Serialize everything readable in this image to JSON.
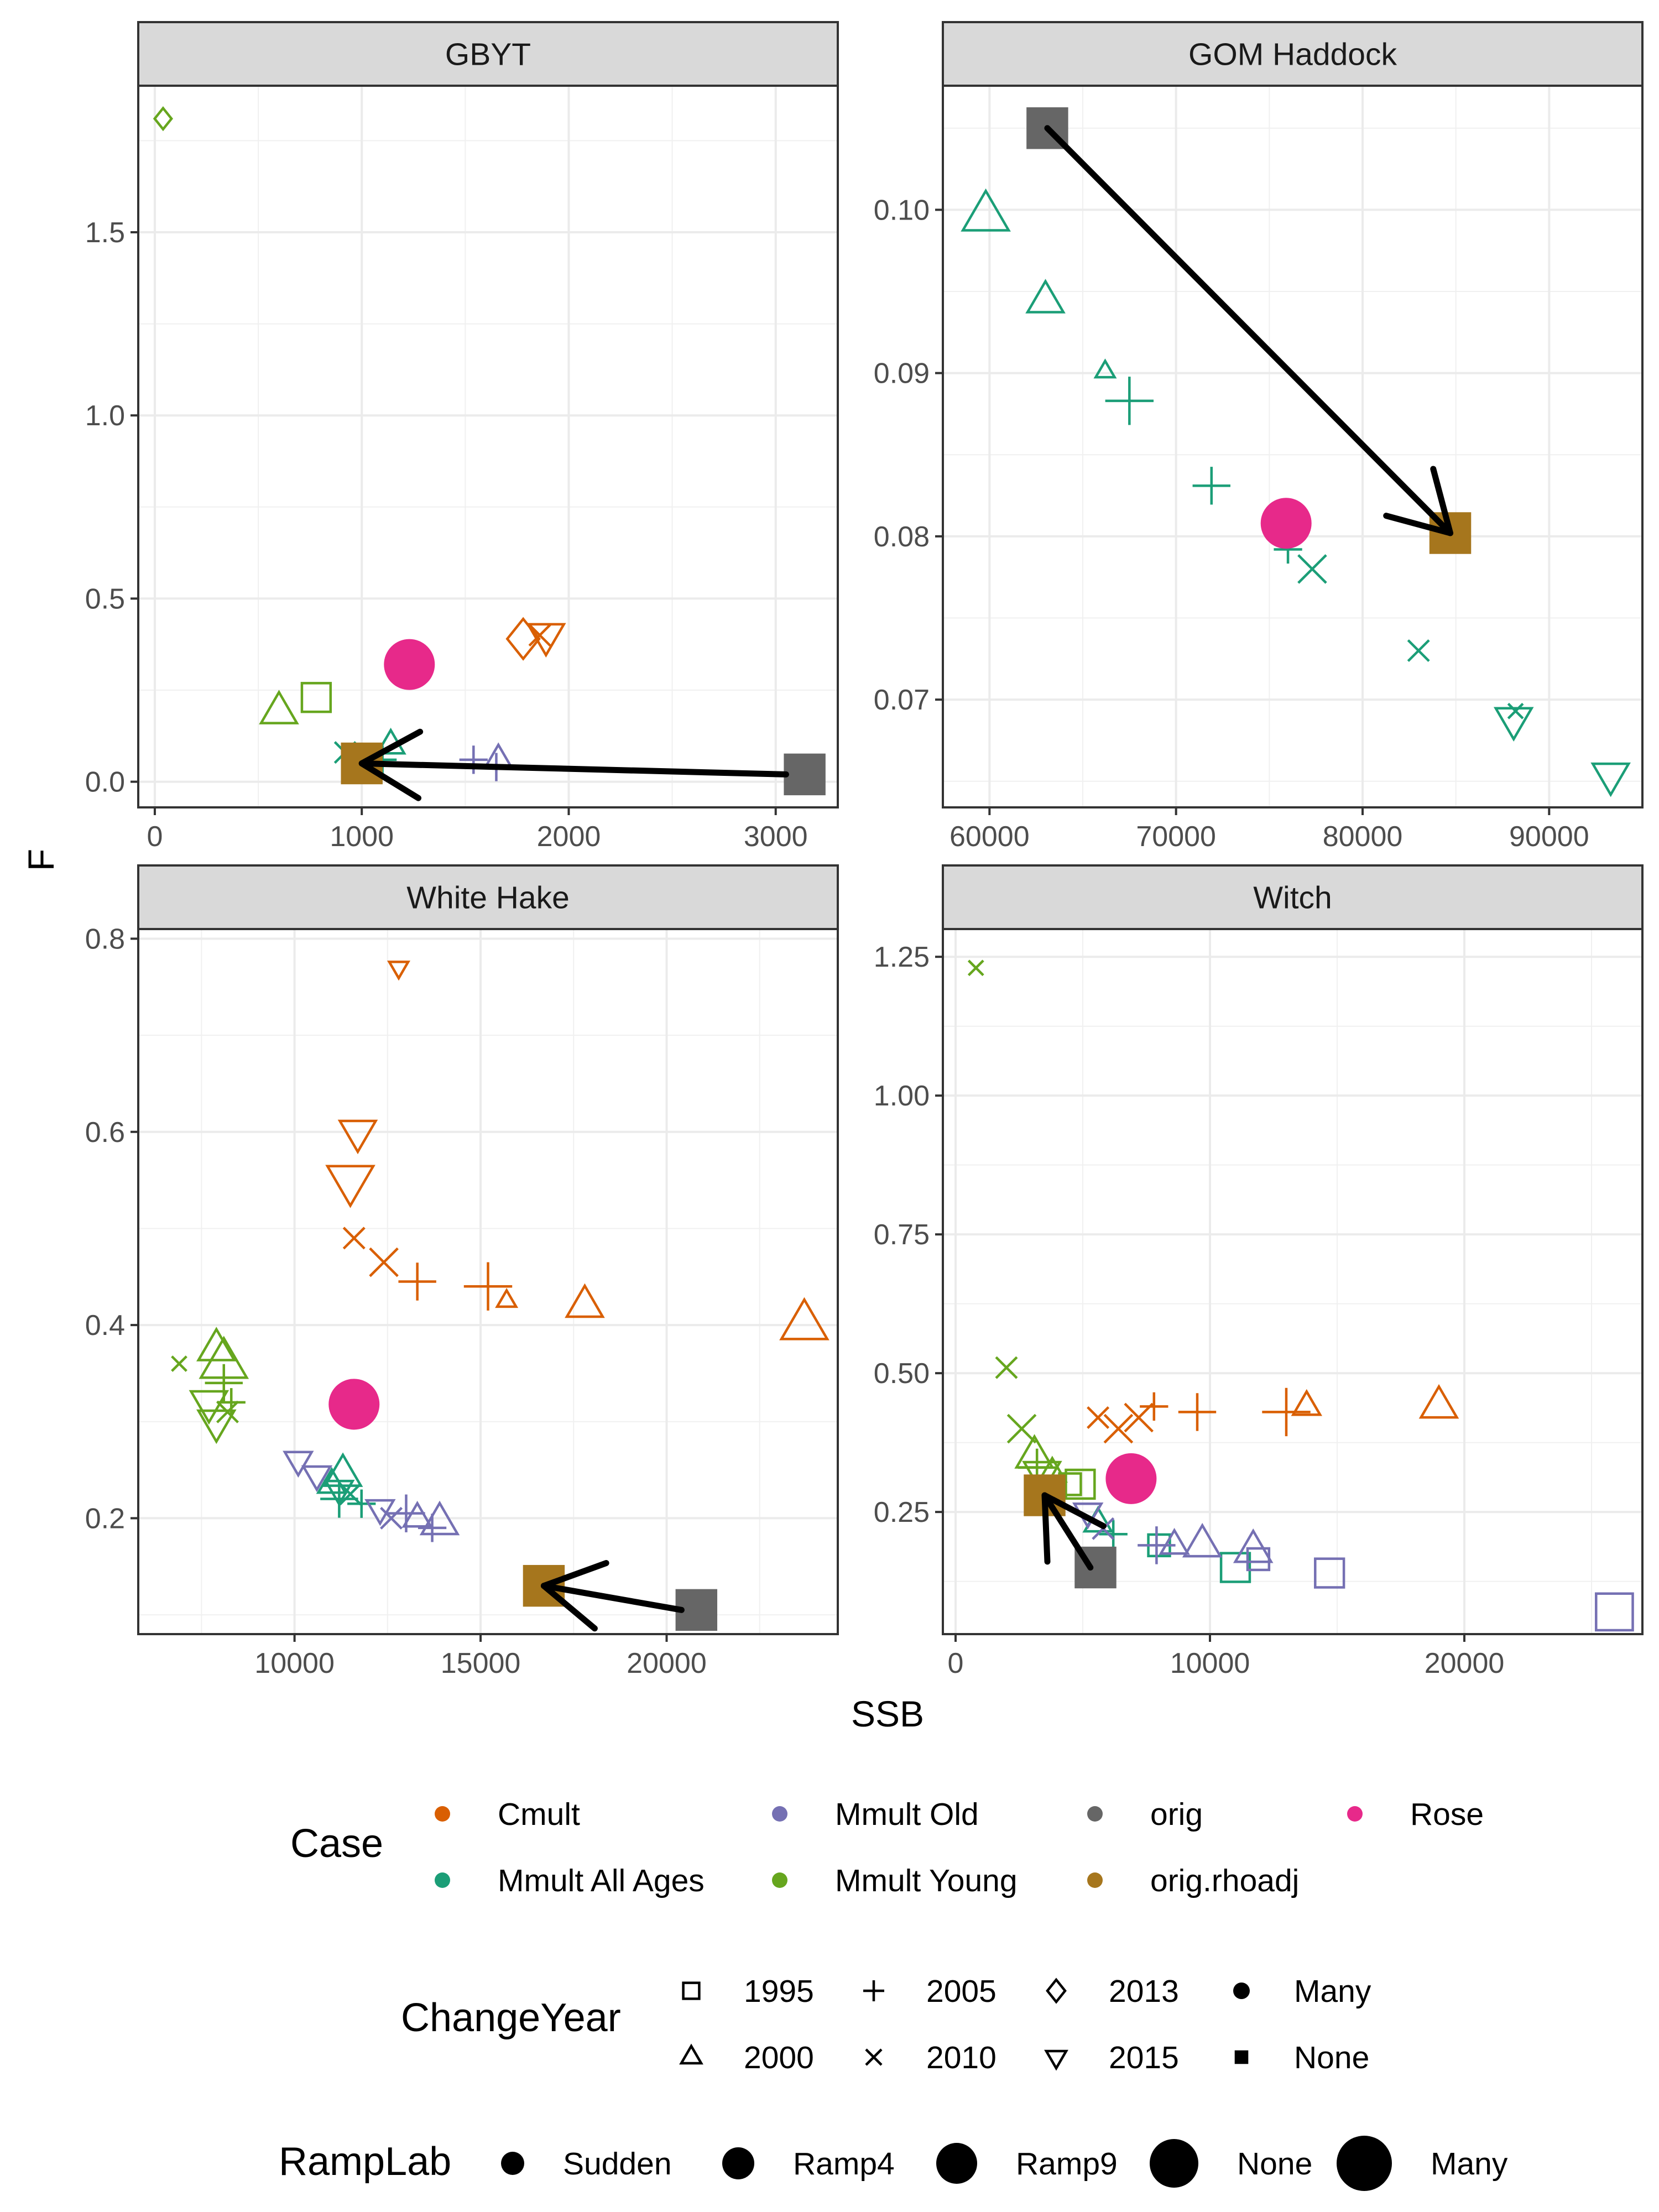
{
  "figure": {
    "xlabel": "SSB",
    "ylabel": "F"
  },
  "colors": {
    "Cmult": "#D95F02",
    "Mmult All Ages": "#1B9E77",
    "Mmult Old": "#7570B3",
    "Mmult Young": "#66A61E",
    "orig": "#666666",
    "orig.rhoadj": "#A6761D",
    "Rose": "#E7298A"
  },
  "chart_data": [
    {
      "type": "scatter",
      "panel": "GBYT",
      "xlim": [
        -80,
        3300
      ],
      "ylim": [
        -0.07,
        1.9
      ],
      "xticks": [
        0,
        1000,
        2000,
        3000
      ],
      "xtick_labels": [
        "0",
        "1000",
        "2000",
        "3000"
      ],
      "yticks": [
        0.0,
        0.5,
        1.0,
        1.5
      ],
      "ytick_labels": [
        "0.0",
        "0.5",
        "1.0",
        "1.5"
      ],
      "points": [
        {
          "case": "Mmult Young",
          "shape": "diamond",
          "size": 1,
          "x": 40,
          "y": 1.81
        },
        {
          "case": "Mmult Young",
          "shape": "triangle",
          "size": 3,
          "x": 600,
          "y": 0.19
        },
        {
          "case": "Mmult Young",
          "shape": "square",
          "size": 3,
          "x": 780,
          "y": 0.23
        },
        {
          "case": "Mmult All Ages",
          "shape": "cross",
          "size": 2,
          "x": 920,
          "y": 0.08
        },
        {
          "case": "Mmult All Ages",
          "shape": "triangle",
          "size": 2,
          "x": 1140,
          "y": 0.1
        },
        {
          "case": "Mmult All Ages",
          "shape": "plus",
          "size": 2,
          "x": 1100,
          "y": 0.06
        },
        {
          "case": "Mmult Old",
          "shape": "plus",
          "size": 2,
          "x": 1540,
          "y": 0.06
        },
        {
          "case": "Mmult Old",
          "shape": "triangle",
          "size": 2,
          "x": 1660,
          "y": 0.06
        },
        {
          "case": "Mmult Old",
          "shape": "plus",
          "size": 2,
          "x": 1650,
          "y": 0.04
        },
        {
          "case": "Cmult",
          "shape": "diamond",
          "size": 3,
          "x": 1780,
          "y": 0.39
        },
        {
          "case": "Cmult",
          "shape": "cross",
          "size": 2,
          "x": 1860,
          "y": 0.4
        },
        {
          "case": "Cmult",
          "shape": "triangle-down",
          "size": 3,
          "x": 1890,
          "y": 0.4
        },
        {
          "case": "Rose",
          "shape": "circle-filled",
          "size": 4,
          "x": 1230,
          "y": 0.32
        },
        {
          "case": "orig.rhoadj",
          "shape": "square-filled",
          "size": 4,
          "x": 1000,
          "y": 0.05
        },
        {
          "case": "orig",
          "shape": "square-filled",
          "size": 4,
          "x": 3140,
          "y": 0.02
        }
      ],
      "arrow": {
        "from": [
          3050,
          0.02
        ],
        "to": [
          1000,
          0.05
        ]
      }
    },
    {
      "type": "scatter",
      "panel": "GOM Haddock",
      "xlim": [
        57500,
        95000
      ],
      "ylim": [
        0.0634,
        0.1076
      ],
      "xticks": [
        60000,
        70000,
        80000,
        90000
      ],
      "xtick_labels": [
        "60000",
        "70000",
        "80000",
        "90000"
      ],
      "yticks": [
        0.07,
        0.08,
        0.09,
        0.1
      ],
      "ytick_labels": [
        "0.07",
        "0.08",
        "0.09",
        "0.10"
      ],
      "points": [
        {
          "case": "Mmult All Ages",
          "shape": "triangle",
          "size": 4,
          "x": 59800,
          "y": 0.0996
        },
        {
          "case": "Mmult All Ages",
          "shape": "triangle",
          "size": 3,
          "x": 63000,
          "y": 0.0944
        },
        {
          "case": "Mmult All Ages",
          "shape": "triangle",
          "size": 1,
          "x": 66200,
          "y": 0.0901
        },
        {
          "case": "Mmult All Ages",
          "shape": "plus",
          "size": 4,
          "x": 67500,
          "y": 0.0883
        },
        {
          "case": "Mmult All Ages",
          "shape": "plus",
          "size": 3,
          "x": 71900,
          "y": 0.0831
        },
        {
          "case": "Mmult All Ages",
          "shape": "plus",
          "size": 2,
          "x": 76000,
          "y": 0.0792
        },
        {
          "case": "Mmult All Ages",
          "shape": "cross",
          "size": 3,
          "x": 77300,
          "y": 0.078
        },
        {
          "case": "Mmult All Ages",
          "shape": "cross",
          "size": 2,
          "x": 83000,
          "y": 0.073
        },
        {
          "case": "Mmult All Ages",
          "shape": "triangle-down",
          "size": 3,
          "x": 88100,
          "y": 0.0688
        },
        {
          "case": "Mmult All Ages",
          "shape": "cross",
          "size": 1,
          "x": 88200,
          "y": 0.0693
        },
        {
          "case": "Mmult All Ages",
          "shape": "triangle-down",
          "size": 3,
          "x": 93300,
          "y": 0.0654
        },
        {
          "case": "Rose",
          "shape": "circle-filled",
          "size": 4,
          "x": 75900,
          "y": 0.0808
        },
        {
          "case": "orig",
          "shape": "square-filled",
          "size": 4,
          "x": 63100,
          "y": 0.105
        },
        {
          "case": "orig.rhoadj",
          "shape": "square-filled",
          "size": 4,
          "x": 84700,
          "y": 0.0802
        }
      ],
      "arrow": {
        "from": [
          63100,
          0.105
        ],
        "to": [
          84700,
          0.0802
        ]
      }
    },
    {
      "type": "scatter",
      "panel": "White Hake",
      "xlim": [
        5800,
        24600
      ],
      "ylim": [
        0.08,
        0.81
      ],
      "xticks": [
        10000,
        15000,
        20000
      ],
      "xtick_labels": [
        "10000",
        "15000",
        "20000"
      ],
      "yticks": [
        0.2,
        0.4,
        0.6,
        0.8
      ],
      "ytick_labels": [
        "0.2",
        "0.4",
        "0.6",
        "0.8"
      ],
      "points": [
        {
          "case": "Cmult",
          "shape": "triangle-down",
          "size": 1,
          "x": 12800,
          "y": 0.77
        },
        {
          "case": "Cmult",
          "shape": "triangle-down",
          "size": 3,
          "x": 11700,
          "y": 0.6
        },
        {
          "case": "Cmult",
          "shape": "triangle-down",
          "size": 4,
          "x": 11500,
          "y": 0.55
        },
        {
          "case": "Cmult",
          "shape": "cross",
          "size": 2,
          "x": 11600,
          "y": 0.49
        },
        {
          "case": "Cmult",
          "shape": "cross",
          "size": 3,
          "x": 12400,
          "y": 0.465
        },
        {
          "case": "Cmult",
          "shape": "plus",
          "size": 3,
          "x": 13300,
          "y": 0.445
        },
        {
          "case": "Cmult",
          "shape": "plus",
          "size": 4,
          "x": 15200,
          "y": 0.44
        },
        {
          "case": "Cmult",
          "shape": "triangle",
          "size": 1,
          "x": 15700,
          "y": 0.425
        },
        {
          "case": "Cmult",
          "shape": "triangle",
          "size": 3,
          "x": 17800,
          "y": 0.42
        },
        {
          "case": "Cmult",
          "shape": "triangle",
          "size": 4,
          "x": 23700,
          "y": 0.4
        },
        {
          "case": "Mmult Young",
          "shape": "cross",
          "size": 1,
          "x": 6900,
          "y": 0.36
        },
        {
          "case": "Mmult Young",
          "shape": "triangle",
          "size": 3,
          "x": 7900,
          "y": 0.375
        },
        {
          "case": "Mmult Young",
          "shape": "triangle",
          "size": 4,
          "x": 8100,
          "y": 0.36
        },
        {
          "case": "Mmult Young",
          "shape": "triangle-down",
          "size": 3,
          "x": 7700,
          "y": 0.32
        },
        {
          "case": "Mmult Young",
          "shape": "triangle-down",
          "size": 3,
          "x": 7900,
          "y": 0.3
        },
        {
          "case": "Mmult Young",
          "shape": "plus",
          "size": 3,
          "x": 8100,
          "y": 0.34
        },
        {
          "case": "Mmult Young",
          "shape": "cross",
          "size": 2,
          "x": 8200,
          "y": 0.31
        },
        {
          "case": "Mmult Young",
          "shape": "plus",
          "size": 2,
          "x": 8300,
          "y": 0.32
        },
        {
          "case": "Mmult Old",
          "shape": "triangle-down",
          "size": 2,
          "x": 10100,
          "y": 0.26
        },
        {
          "case": "Mmult Old",
          "shape": "triangle-down",
          "size": 2,
          "x": 10600,
          "y": 0.245
        },
        {
          "case": "Mmult All Ages",
          "shape": "triangle",
          "size": 3,
          "x": 11300,
          "y": 0.245
        },
        {
          "case": "Mmult All Ages",
          "shape": "triangle",
          "size": 2,
          "x": 11000,
          "y": 0.235
        },
        {
          "case": "Mmult All Ages",
          "shape": "triangle-down",
          "size": 2,
          "x": 11200,
          "y": 0.23
        },
        {
          "case": "Mmult All Ages",
          "shape": "cross",
          "size": 2,
          "x": 11500,
          "y": 0.225
        },
        {
          "case": "Mmult All Ages",
          "shape": "plus",
          "size": 3,
          "x": 11200,
          "y": 0.22
        },
        {
          "case": "Mmult All Ages",
          "shape": "plus",
          "size": 2,
          "x": 11800,
          "y": 0.215
        },
        {
          "case": "Mmult Old",
          "shape": "triangle-down",
          "size": 2,
          "x": 12300,
          "y": 0.21
        },
        {
          "case": "Mmult Old",
          "shape": "cross",
          "size": 2,
          "x": 12600,
          "y": 0.2
        },
        {
          "case": "Mmult Old",
          "shape": "plus",
          "size": 3,
          "x": 13000,
          "y": 0.205
        },
        {
          "case": "Mmult Old",
          "shape": "triangle",
          "size": 2,
          "x": 13300,
          "y": 0.2
        },
        {
          "case": "Mmult Old",
          "shape": "plus",
          "size": 2,
          "x": 13700,
          "y": 0.19
        },
        {
          "case": "Mmult Old",
          "shape": "triangle",
          "size": 3,
          "x": 13900,
          "y": 0.195
        },
        {
          "case": "Rose",
          "shape": "circle-filled",
          "size": 4,
          "x": 11600,
          "y": 0.318
        },
        {
          "case": "orig.rhoadj",
          "shape": "square-filled",
          "size": 4,
          "x": 16700,
          "y": 0.13
        },
        {
          "case": "orig",
          "shape": "square-filled",
          "size": 4,
          "x": 20800,
          "y": 0.105
        }
      ],
      "arrow": {
        "from": [
          20400,
          0.105
        ],
        "to": [
          16700,
          0.13
        ]
      }
    },
    {
      "type": "scatter",
      "panel": "Witch",
      "xlim": [
        -500,
        27000
      ],
      "ylim": [
        0.03,
        1.3
      ],
      "xticks": [
        0,
        10000,
        20000
      ],
      "xtick_labels": [
        "0",
        "10000",
        "20000"
      ],
      "yticks": [
        0.25,
        0.5,
        0.75,
        1.0,
        1.25
      ],
      "ytick_labels": [
        "0.25",
        "0.50",
        "0.75",
        "1.00",
        "1.25"
      ],
      "points": [
        {
          "case": "Mmult Young",
          "shape": "cross",
          "size": 1,
          "x": 800,
          "y": 1.23
        },
        {
          "case": "Mmult Young",
          "shape": "cross",
          "size": 2,
          "x": 2000,
          "y": 0.51
        },
        {
          "case": "Mmult Young",
          "shape": "cross",
          "size": 3,
          "x": 2600,
          "y": 0.4
        },
        {
          "case": "Mmult Young",
          "shape": "triangle",
          "size": 3,
          "x": 3100,
          "y": 0.35
        },
        {
          "case": "Mmult Young",
          "shape": "plus",
          "size": 3,
          "x": 3200,
          "y": 0.33
        },
        {
          "case": "Mmult Young",
          "shape": "triangle-down",
          "size": 3,
          "x": 3400,
          "y": 0.32
        },
        {
          "case": "Mmult Young",
          "shape": "triangle",
          "size": 2,
          "x": 3800,
          "y": 0.32
        },
        {
          "case": "Mmult Young",
          "shape": "square",
          "size": 2,
          "x": 4500,
          "y": 0.3
        },
        {
          "case": "Mmult Young",
          "shape": "square",
          "size": 3,
          "x": 4900,
          "y": 0.3
        },
        {
          "case": "Cmult",
          "shape": "cross",
          "size": 2,
          "x": 5600,
          "y": 0.42
        },
        {
          "case": "Cmult",
          "shape": "cross",
          "size": 3,
          "x": 6400,
          "y": 0.4
        },
        {
          "case": "Cmult",
          "shape": "cross",
          "size": 3,
          "x": 7200,
          "y": 0.42
        },
        {
          "case": "Cmult",
          "shape": "plus",
          "size": 2,
          "x": 7800,
          "y": 0.44
        },
        {
          "case": "Cmult",
          "shape": "plus",
          "size": 3,
          "x": 9500,
          "y": 0.43
        },
        {
          "case": "Cmult",
          "shape": "plus",
          "size": 4,
          "x": 13000,
          "y": 0.43
        },
        {
          "case": "Cmult",
          "shape": "triangle",
          "size": 2,
          "x": 13800,
          "y": 0.44
        },
        {
          "case": "Cmult",
          "shape": "triangle",
          "size": 3,
          "x": 19000,
          "y": 0.44
        },
        {
          "case": "Mmult All Ages",
          "shape": "triangle",
          "size": 2,
          "x": 5600,
          "y": 0.23
        },
        {
          "case": "Mmult All Ages",
          "shape": "plus",
          "size": 2,
          "x": 6200,
          "y": 0.21
        },
        {
          "case": "Mmult All Ages",
          "shape": "square",
          "size": 2,
          "x": 8000,
          "y": 0.19
        },
        {
          "case": "Mmult All Ages",
          "shape": "square",
          "size": 3,
          "x": 11000,
          "y": 0.15
        },
        {
          "case": "Mmult Old",
          "shape": "triangle-down",
          "size": 2,
          "x": 5200,
          "y": 0.25
        },
        {
          "case": "Mmult Old",
          "shape": "cross",
          "size": 2,
          "x": 5800,
          "y": 0.22
        },
        {
          "case": "Mmult Old",
          "shape": "plus",
          "size": 3,
          "x": 7900,
          "y": 0.19
        },
        {
          "case": "Mmult Old",
          "shape": "triangle",
          "size": 2,
          "x": 8600,
          "y": 0.19
        },
        {
          "case": "Mmult Old",
          "shape": "triangle",
          "size": 3,
          "x": 9700,
          "y": 0.19
        },
        {
          "case": "Mmult Old",
          "shape": "triangle",
          "size": 3,
          "x": 11700,
          "y": 0.18
        },
        {
          "case": "Mmult Old",
          "shape": "square",
          "size": 2,
          "x": 11900,
          "y": 0.165
        },
        {
          "case": "Mmult Old",
          "shape": "square",
          "size": 3,
          "x": 14700,
          "y": 0.14
        },
        {
          "case": "Mmult Old",
          "shape": "square",
          "size": 4,
          "x": 25900,
          "y": 0.07
        },
        {
          "case": "Rose",
          "shape": "circle-filled",
          "size": 4,
          "x": 6900,
          "y": 0.31
        },
        {
          "case": "orig.rhoadj",
          "shape": "square-filled",
          "size": 4,
          "x": 3500,
          "y": 0.28
        },
        {
          "case": "orig",
          "shape": "square-filled",
          "size": 4,
          "x": 5500,
          "y": 0.15
        }
      ],
      "arrow": {
        "from": [
          5300,
          0.15
        ],
        "to": [
          3500,
          0.28
        ]
      }
    }
  ],
  "legend": {
    "case_title": "Case",
    "case_items": [
      {
        "label": "Cmult",
        "color": "#D95F02"
      },
      {
        "label": "Mmult All Ages",
        "color": "#1B9E77"
      },
      {
        "label": "Mmult Old",
        "color": "#7570B3"
      },
      {
        "label": "Mmult Young",
        "color": "#66A61E"
      },
      {
        "label": "orig",
        "color": "#666666"
      },
      {
        "label": "orig.rhoadj",
        "color": "#A6761D"
      },
      {
        "label": "Rose",
        "color": "#E7298A"
      }
    ],
    "changeyear_title": "ChangeYear",
    "changeyear_items": [
      {
        "label": "1995",
        "shape": "square"
      },
      {
        "label": "2000",
        "shape": "triangle"
      },
      {
        "label": "2005",
        "shape": "plus"
      },
      {
        "label": "2010",
        "shape": "cross"
      },
      {
        "label": "2013",
        "shape": "diamond"
      },
      {
        "label": "2015",
        "shape": "triangle-down"
      },
      {
        "label": "Many",
        "shape": "circle-filled"
      },
      {
        "label": "None",
        "shape": "square-filled"
      }
    ],
    "ramplab_title": "RampLab",
    "ramplab_items": [
      {
        "label": "Sudden",
        "size": 1
      },
      {
        "label": "Ramp4",
        "size": 2
      },
      {
        "label": "Ramp9",
        "size": 3
      },
      {
        "label": "None",
        "size": 4
      },
      {
        "label": "Many",
        "size": 5
      }
    ]
  }
}
